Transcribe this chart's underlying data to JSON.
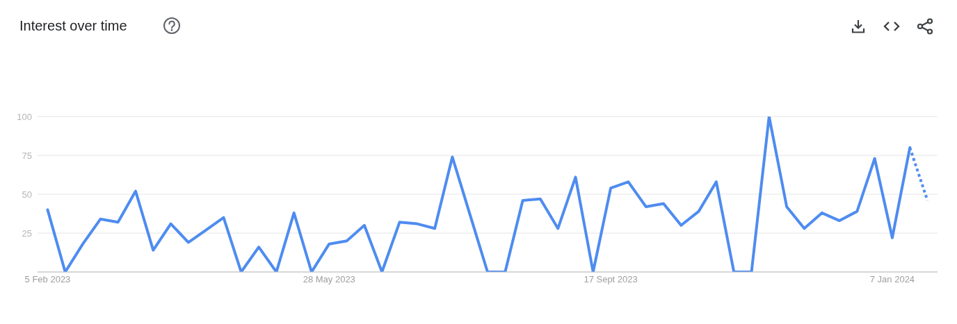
{
  "chart_data": {
    "type": "line",
    "title": "Interest over time",
    "x": [
      "2023-02-05",
      "2023-02-12",
      "2023-02-19",
      "2023-02-26",
      "2023-03-05",
      "2023-03-12",
      "2023-03-19",
      "2023-03-26",
      "2023-04-02",
      "2023-04-09",
      "2023-04-16",
      "2023-04-23",
      "2023-04-30",
      "2023-05-07",
      "2023-05-14",
      "2023-05-21",
      "2023-05-28",
      "2023-06-04",
      "2023-06-11",
      "2023-06-18",
      "2023-06-25",
      "2023-07-02",
      "2023-07-09",
      "2023-07-16",
      "2023-07-23",
      "2023-07-30",
      "2023-08-06",
      "2023-08-13",
      "2023-08-20",
      "2023-08-27",
      "2023-09-03",
      "2023-09-10",
      "2023-09-17",
      "2023-09-24",
      "2023-10-01",
      "2023-10-08",
      "2023-10-15",
      "2023-10-22",
      "2023-10-29",
      "2023-11-05",
      "2023-11-12",
      "2023-11-19",
      "2023-11-26",
      "2023-12-03",
      "2023-12-10",
      "2023-12-17",
      "2023-12-24",
      "2023-12-31",
      "2024-01-07",
      "2024-01-14",
      "2024-01-21"
    ],
    "series": [
      {
        "color": "#4e8cf0",
        "line_style": "solid",
        "values": [
          40,
          0,
          18,
          34,
          32,
          52,
          14,
          31,
          19,
          27,
          35,
          0,
          16,
          0,
          38,
          0,
          18,
          20,
          30,
          0,
          32,
          31,
          28,
          74,
          37,
          0,
          0,
          46,
          47,
          28,
          61,
          0,
          54,
          58,
          42,
          44,
          30,
          39,
          58,
          0,
          0,
          100,
          42,
          28,
          38,
          33,
          39,
          73,
          22,
          80,
          null
        ]
      },
      {
        "color": "#4e8cf0",
        "line_style": "dotted",
        "values": [
          null,
          null,
          null,
          null,
          null,
          null,
          null,
          null,
          null,
          null,
          null,
          null,
          null,
          null,
          null,
          null,
          null,
          null,
          null,
          null,
          null,
          null,
          null,
          null,
          null,
          null,
          null,
          null,
          null,
          null,
          null,
          null,
          null,
          null,
          null,
          null,
          null,
          null,
          null,
          null,
          null,
          null,
          null,
          null,
          null,
          null,
          null,
          null,
          null,
          80,
          46
        ]
      }
    ],
    "xlim": [
      "2023-02-01",
      "2024-01-25"
    ],
    "xticks": [
      {
        "value": "2023-02-05",
        "label": "5 Feb 2023"
      },
      {
        "value": "2023-05-28",
        "label": "28 May 2023"
      },
      {
        "value": "2023-09-17",
        "label": "17 Sept 2023"
      },
      {
        "value": "2024-01-07",
        "label": "7 Jan 2024"
      }
    ],
    "ylim": [
      0,
      100
    ],
    "yticks": [
      {
        "value": 0,
        "label": null
      },
      25,
      50,
      75,
      100
    ],
    "grid": "y"
  }
}
